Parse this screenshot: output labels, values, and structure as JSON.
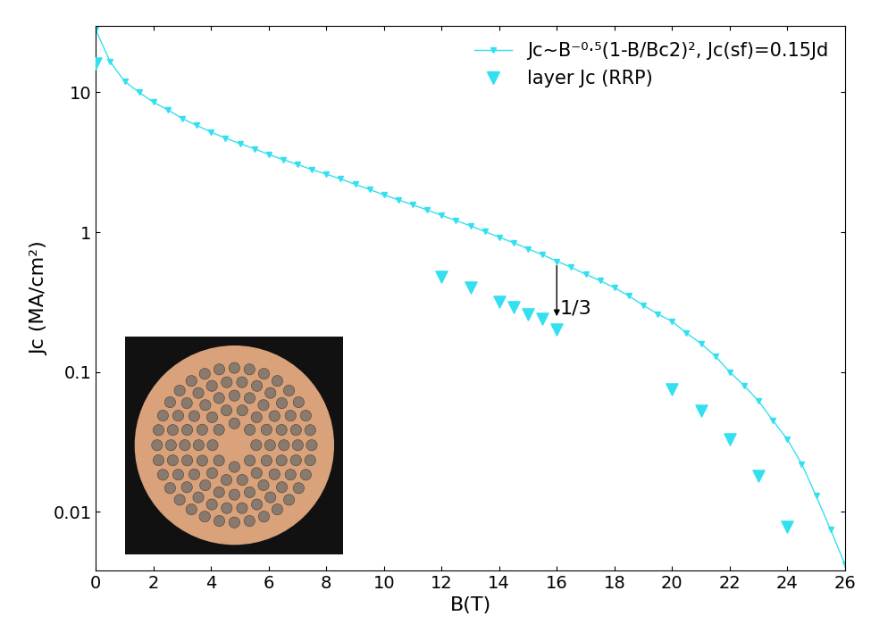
{
  "chart_data": {
    "type": "line",
    "x_label": "B(T)",
    "y_label": "Jc (MA/cm²)",
    "log": "y",
    "xlim": [
      0,
      26
    ],
    "xticks": [
      0,
      2,
      4,
      6,
      8,
      10,
      12,
      14,
      16,
      18,
      20,
      22,
      24,
      26
    ],
    "ylim": [
      0.0038,
      30
    ],
    "yticks": [
      0.01,
      0.1,
      1,
      10
    ],
    "legend": "upper right",
    "series": [
      {
        "name": "Jc~B⁻⁰·⁵(1-B/Bc2)², Jc(sf)=0.15Jd",
        "type": "line",
        "marker": "v",
        "line_style": "solid",
        "color": "#33e0f0",
        "x": [
          0,
          0.5,
          1,
          1.5,
          2,
          2.5,
          3,
          3.5,
          4,
          4.5,
          5,
          5.5,
          6,
          6.5,
          7,
          7.5,
          8,
          8.5,
          9,
          9.5,
          10,
          10.5,
          11,
          11.5,
          12,
          12.5,
          13,
          13.5,
          14,
          14.5,
          15,
          15.5,
          16,
          16.5,
          17,
          17.5,
          18,
          18.5,
          19,
          19.5,
          20,
          20.5,
          21,
          21.5,
          22,
          22.5,
          23,
          23.5,
          24,
          24.5,
          25,
          25.5,
          26
        ],
        "values": [
          28,
          16.5,
          12,
          10,
          8.5,
          7.5,
          6.5,
          5.8,
          5.2,
          4.7,
          4.3,
          3.95,
          3.6,
          3.3,
          3.05,
          2.8,
          2.6,
          2.4,
          2.2,
          2.02,
          1.85,
          1.7,
          1.57,
          1.44,
          1.32,
          1.21,
          1.11,
          1.01,
          0.92,
          0.84,
          0.76,
          0.69,
          0.62,
          0.56,
          0.5,
          0.45,
          0.4,
          0.35,
          0.3,
          0.26,
          0.23,
          0.19,
          0.16,
          0.13,
          0.1,
          0.08,
          0.062,
          0.045,
          0.033,
          0.022,
          0.013,
          0.0075,
          0.0042
        ]
      },
      {
        "name": "layer Jc (RRP)",
        "type": "scatter",
        "marker": "v",
        "color": "#33e0f0",
        "x": [
          0,
          12,
          13,
          14,
          14.5,
          15,
          15.5,
          16,
          20,
          21,
          22,
          23,
          24
        ],
        "values": [
          16,
          0.48,
          0.4,
          0.32,
          0.29,
          0.26,
          0.24,
          0.2,
          0.075,
          0.053,
          0.033,
          0.018,
          0.0078
        ]
      }
    ],
    "annotations": [
      {
        "text": "1/3",
        "x": 16,
        "y_start": 0.6,
        "y_end": 0.24
      }
    ]
  }
}
